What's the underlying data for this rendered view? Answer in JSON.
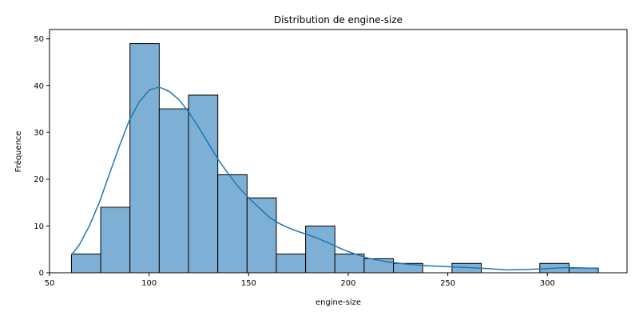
{
  "chart_data": {
    "type": "bar",
    "title": "Distribution de engine-size",
    "xlabel": "engine-size",
    "ylabel": "Fréquence",
    "xlim": [
      50,
      340
    ],
    "ylim": [
      0,
      52
    ],
    "xticks": [
      50,
      100,
      150,
      200,
      250,
      300
    ],
    "yticks": [
      0,
      10,
      20,
      30,
      40,
      50
    ],
    "grid": false,
    "bar_color": "#7EB0D5",
    "kde_color": "#1F77B4",
    "bins": [
      {
        "start": 61,
        "end": 75.7,
        "count": 4
      },
      {
        "start": 75.7,
        "end": 90.4,
        "count": 14
      },
      {
        "start": 90.4,
        "end": 105.1,
        "count": 49
      },
      {
        "start": 105.1,
        "end": 119.8,
        "count": 35
      },
      {
        "start": 119.8,
        "end": 134.5,
        "count": 38
      },
      {
        "start": 134.5,
        "end": 149.2,
        "count": 21
      },
      {
        "start": 149.2,
        "end": 163.9,
        "count": 16
      },
      {
        "start": 163.9,
        "end": 178.6,
        "count": 4
      },
      {
        "start": 178.6,
        "end": 193.3,
        "count": 10
      },
      {
        "start": 193.3,
        "end": 208.0,
        "count": 4
      },
      {
        "start": 208.0,
        "end": 222.7,
        "count": 3
      },
      {
        "start": 222.7,
        "end": 237.4,
        "count": 2
      },
      {
        "start": 237.4,
        "end": 252.1,
        "count": 0
      },
      {
        "start": 252.1,
        "end": 266.8,
        "count": 2
      },
      {
        "start": 266.8,
        "end": 281.5,
        "count": 0
      },
      {
        "start": 281.5,
        "end": 296.2,
        "count": 0
      },
      {
        "start": 296.2,
        "end": 310.9,
        "count": 2
      },
      {
        "start": 310.9,
        "end": 325.6,
        "count": 1
      }
    ],
    "kde": {
      "x": [
        61,
        65,
        70,
        75,
        80,
        85,
        90,
        95,
        100,
        105,
        110,
        115,
        120,
        125,
        130,
        135,
        140,
        145,
        150,
        155,
        160,
        165,
        170,
        175,
        180,
        185,
        190,
        195,
        200,
        210,
        220,
        230,
        240,
        250,
        260,
        270,
        280,
        290,
        300,
        310,
        320,
        326
      ],
      "y": [
        3.8,
        6,
        10,
        15,
        21,
        27,
        32.5,
        36.5,
        39,
        39.7,
        38.8,
        37,
        34.3,
        31,
        27.5,
        24,
        21,
        18.3,
        16,
        14,
        12,
        10.6,
        9.6,
        8.8,
        8.1,
        7.3,
        6.4,
        5.4,
        4.5,
        3.1,
        2.3,
        1.8,
        1.5,
        1.3,
        1.1,
        0.9,
        0.6,
        0.7,
        0.9,
        1.1,
        1.0,
        0.9
      ]
    }
  }
}
